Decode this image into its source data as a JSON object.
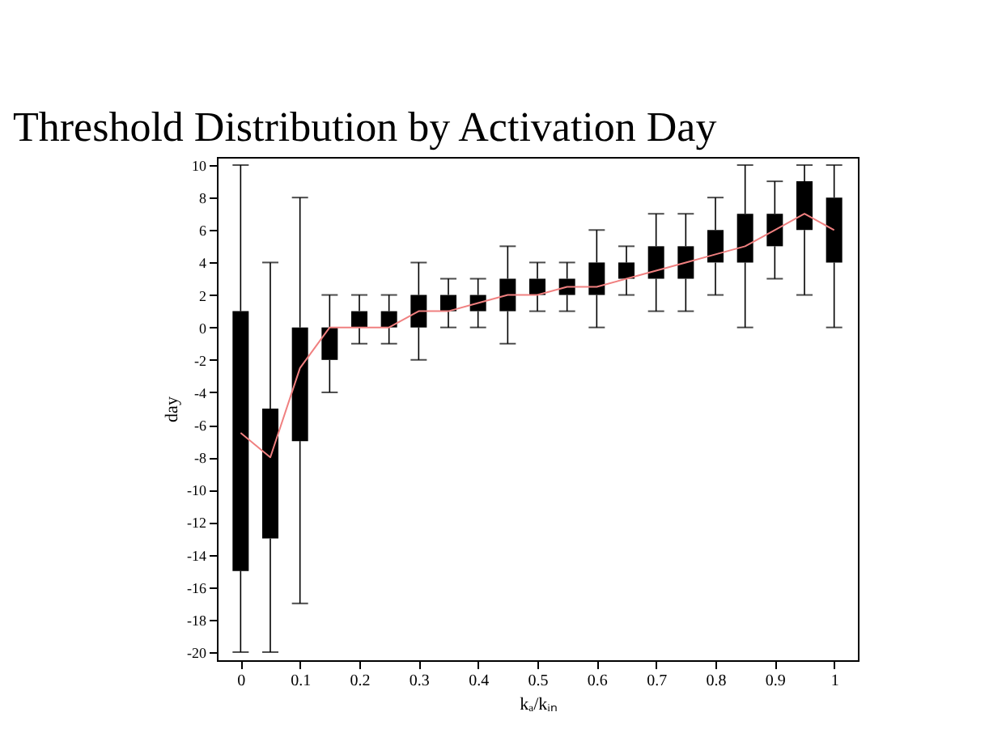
{
  "chart_data": {
    "type": "box",
    "title": "Threshold Distribution by Activation Day",
    "xlabel": "kₐ/kᵢₙ",
    "ylabel": "day",
    "x": [
      0,
      0.05,
      0.1,
      0.15,
      0.2,
      0.25,
      0.3,
      0.35,
      0.4,
      0.45,
      0.5,
      0.55,
      0.6,
      0.65,
      0.7,
      0.75,
      0.8,
      0.85,
      0.9,
      0.95,
      1
    ],
    "xlim": [
      -0.04,
      1.04
    ],
    "xticks": [
      0,
      0.1,
      0.2,
      0.3,
      0.4,
      0.5,
      0.6,
      0.7,
      0.8,
      0.9,
      1
    ],
    "ylim": [
      -20.5,
      10.5
    ],
    "yticks": [
      -20,
      -18,
      -16,
      -14,
      -12,
      -10,
      -8,
      -6,
      -4,
      -2,
      0,
      2,
      4,
      6,
      8,
      10
    ],
    "series": [
      {
        "type": "box",
        "color": "#000000",
        "boxes": [
          {
            "low": -20,
            "q1": -15,
            "q3": 1,
            "high": 10
          },
          {
            "low": -20,
            "q1": -13,
            "q3": -5,
            "high": 4
          },
          {
            "low": -17,
            "q1": -7,
            "q3": 0,
            "high": 8
          },
          {
            "low": -4,
            "q1": -2,
            "q3": 0,
            "high": 2
          },
          {
            "low": -1,
            "q1": 0,
            "q3": 1,
            "high": 2
          },
          {
            "low": -1,
            "q1": 0,
            "q3": 1,
            "high": 2
          },
          {
            "low": -2,
            "q1": 0,
            "q3": 2,
            "high": 4
          },
          {
            "low": 0,
            "q1": 1,
            "q3": 2,
            "high": 3
          },
          {
            "low": 0,
            "q1": 1,
            "q3": 2,
            "high": 3
          },
          {
            "low": -1,
            "q1": 1,
            "q3": 3,
            "high": 5
          },
          {
            "low": 1,
            "q1": 2,
            "q3": 3,
            "high": 4
          },
          {
            "low": 1,
            "q1": 2,
            "q3": 3,
            "high": 4
          },
          {
            "low": 0,
            "q1": 2,
            "q3": 4,
            "high": 6
          },
          {
            "low": 2,
            "q1": 3,
            "q3": 4,
            "high": 5
          },
          {
            "low": 1,
            "q1": 3,
            "q3": 5,
            "high": 7
          },
          {
            "low": 1,
            "q1": 3,
            "q3": 5,
            "high": 7
          },
          {
            "low": 2,
            "q1": 4,
            "q3": 6,
            "high": 8
          },
          {
            "low": 0,
            "q1": 4,
            "q3": 7,
            "high": 10
          },
          {
            "low": 3,
            "q1": 5,
            "q3": 7,
            "high": 9
          },
          {
            "low": 2,
            "q1": 6,
            "q3": 9,
            "high": 10
          },
          {
            "low": 0,
            "q1": 4,
            "q3": 8,
            "high": 10
          }
        ]
      },
      {
        "type": "line",
        "color": "#f08080",
        "x": [
          0,
          0.05,
          0.1,
          0.15,
          0.2,
          0.25,
          0.3,
          0.35,
          0.4,
          0.45,
          0.5,
          0.55,
          0.6,
          0.65,
          0.7,
          0.75,
          0.8,
          0.85,
          0.9,
          0.95,
          1
        ],
        "values": [
          -6.5,
          -8,
          -2.5,
          0,
          0,
          0,
          1,
          1,
          1.5,
          2,
          2,
          2.5,
          2.5,
          3,
          3.5,
          4,
          4.5,
          5,
          6,
          7,
          6
        ]
      }
    ]
  }
}
